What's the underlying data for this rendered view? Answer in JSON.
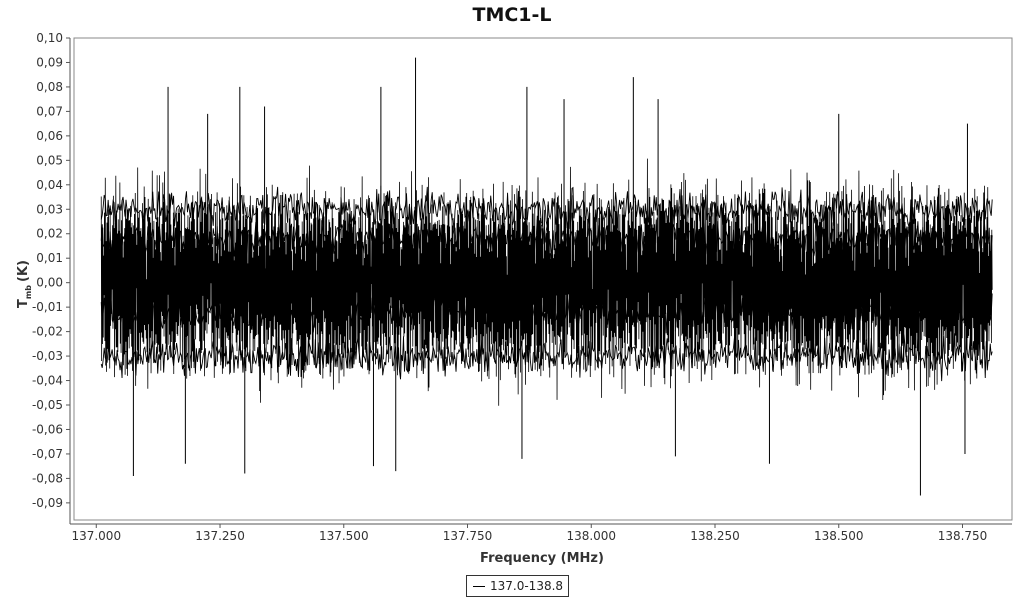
{
  "chart_data": {
    "type": "line",
    "title": "TMC1-L",
    "xlabel": "Frequency (MHz)",
    "ylabel": "T",
    "ylabel_sub": "mb",
    "ylabel_unit": "(K)",
    "xlim": [
      136.955,
      138.85
    ],
    "ylim": [
      -0.097,
      0.1
    ],
    "x_ticks": [
      {
        "value": 137.0,
        "label": "137.000"
      },
      {
        "value": 137.25,
        "label": "137.250"
      },
      {
        "value": 137.5,
        "label": "137.500"
      },
      {
        "value": 137.75,
        "label": "137.750"
      },
      {
        "value": 138.0,
        "label": "138.000"
      },
      {
        "value": 138.25,
        "label": "138.250"
      },
      {
        "value": 138.5,
        "label": "138.500"
      },
      {
        "value": 138.75,
        "label": "138.750"
      }
    ],
    "y_ticks": [
      {
        "value": 0.1,
        "label": "0,10"
      },
      {
        "value": 0.09,
        "label": "0,09"
      },
      {
        "value": 0.08,
        "label": "0,08"
      },
      {
        "value": 0.07,
        "label": "0,07"
      },
      {
        "value": 0.06,
        "label": "0,06"
      },
      {
        "value": 0.05,
        "label": "0,05"
      },
      {
        "value": 0.04,
        "label": "0,04"
      },
      {
        "value": 0.03,
        "label": "0,03"
      },
      {
        "value": 0.02,
        "label": "0,02"
      },
      {
        "value": 0.01,
        "label": "0,01"
      },
      {
        "value": 0.0,
        "label": "0,00"
      },
      {
        "value": -0.01,
        "label": "-0,01"
      },
      {
        "value": -0.02,
        "label": "-0,02"
      },
      {
        "value": -0.03,
        "label": "-0,03"
      },
      {
        "value": -0.04,
        "label": "-0,04"
      },
      {
        "value": -0.05,
        "label": "-0,05"
      },
      {
        "value": -0.06,
        "label": "-0,06"
      },
      {
        "value": -0.07,
        "label": "-0,07"
      },
      {
        "value": -0.08,
        "label": "-0,08"
      },
      {
        "value": -0.09,
        "label": "-0,09"
      }
    ],
    "grid": false,
    "legend_position": "bottom-center",
    "series": [
      {
        "name": "137.0-138.8",
        "color": "#000000",
        "x_range": [
          137.01,
          138.81
        ],
        "envelope_max": 0.066,
        "envelope_min": -0.065,
        "peaks": [
          {
            "x": 137.645,
            "y": 0.092
          },
          {
            "x": 137.145,
            "y": 0.08
          },
          {
            "x": 137.29,
            "y": 0.08
          },
          {
            "x": 137.575,
            "y": 0.08
          },
          {
            "x": 137.87,
            "y": 0.08
          },
          {
            "x": 138.085,
            "y": 0.084
          },
          {
            "x": 137.225,
            "y": 0.069
          },
          {
            "x": 137.34,
            "y": 0.072
          },
          {
            "x": 137.945,
            "y": 0.075
          },
          {
            "x": 138.135,
            "y": 0.075
          },
          {
            "x": 138.5,
            "y": 0.069
          },
          {
            "x": 138.76,
            "y": 0.065
          }
        ],
        "troughs": [
          {
            "x": 137.075,
            "y": -0.079
          },
          {
            "x": 137.3,
            "y": -0.078
          },
          {
            "x": 138.665,
            "y": -0.087
          },
          {
            "x": 137.18,
            "y": -0.074
          },
          {
            "x": 137.56,
            "y": -0.075
          },
          {
            "x": 137.605,
            "y": -0.077
          },
          {
            "x": 137.86,
            "y": -0.072
          },
          {
            "x": 138.17,
            "y": -0.071
          },
          {
            "x": 138.36,
            "y": -0.074
          },
          {
            "x": 138.755,
            "y": -0.07
          }
        ]
      }
    ]
  },
  "legend": {
    "label": "137.0-138.8"
  }
}
